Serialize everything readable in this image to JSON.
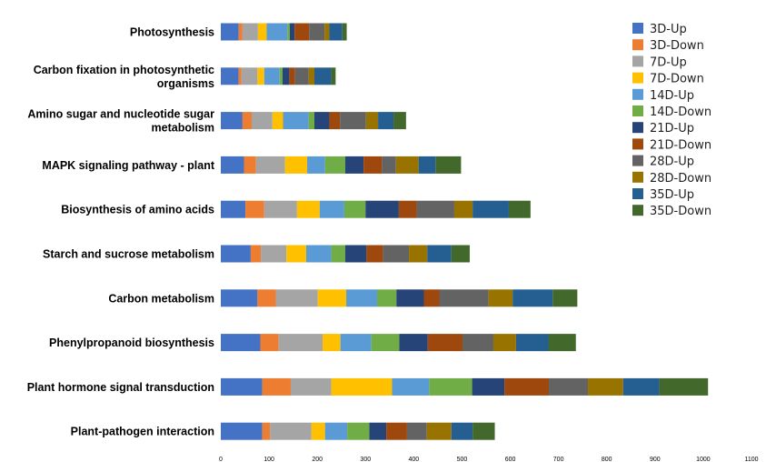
{
  "chart_data": {
    "type": "bar",
    "orientation": "horizontal",
    "stacked": true,
    "title": "",
    "xlabel": "",
    "ylabel": "",
    "xlim": [
      0,
      1100
    ],
    "xticks": [
      "0",
      "100",
      "200",
      "300",
      "400",
      "500",
      "600",
      "700",
      "800",
      "900",
      "1000",
      "1100"
    ],
    "grid": false,
    "legend_position": "top-right",
    "categories": [
      {
        "lines": [
          "Photosynthesis"
        ]
      },
      {
        "lines": [
          "Carbon fixation in photosynthetic",
          "organisms"
        ]
      },
      {
        "lines": [
          "Amino sugar and nucleotide sugar",
          "metabolism"
        ]
      },
      {
        "lines": [
          "MAPK signaling pathway - plant"
        ]
      },
      {
        "lines": [
          "Biosynthesis of amino acids"
        ]
      },
      {
        "lines": [
          "Starch and sucrose metabolism"
        ]
      },
      {
        "lines": [
          "Carbon metabolism"
        ]
      },
      {
        "lines": [
          "Phenylpropanoid biosynthesis"
        ]
      },
      {
        "lines": [
          "Plant hormone signal transduction"
        ]
      },
      {
        "lines": [
          "Plant-pathogen interaction"
        ]
      }
    ],
    "series": [
      {
        "name": "3D-Up",
        "color": "#4472C4",
        "values": [
          37,
          37,
          45,
          48,
          51,
          62,
          76,
          82,
          86,
          86
        ]
      },
      {
        "name": "3D-Down",
        "color": "#ED7D31",
        "values": [
          8,
          6,
          19,
          25,
          39,
          21,
          38,
          38,
          59,
          16
        ]
      },
      {
        "name": "7D-Up",
        "color": "#A5A5A5",
        "values": [
          32,
          33,
          43,
          60,
          68,
          53,
          87,
          91,
          84,
          86
        ]
      },
      {
        "name": "7D-Down",
        "color": "#FFC000",
        "values": [
          18,
          14,
          22,
          46,
          47,
          41,
          59,
          37,
          126,
          28
        ]
      },
      {
        "name": "14D-Up",
        "color": "#5B9BD5",
        "values": [
          43,
          32,
          53,
          37,
          51,
          52,
          64,
          64,
          77,
          46
        ]
      },
      {
        "name": "14D-Down",
        "color": "#70AD47",
        "values": [
          5,
          6,
          12,
          42,
          44,
          29,
          40,
          58,
          89,
          46
        ]
      },
      {
        "name": "21D-Up",
        "color": "#264478",
        "values": [
          10,
          14,
          31,
          38,
          69,
          44,
          57,
          59,
          67,
          35
        ]
      },
      {
        "name": "21D-Down",
        "color": "#9E480E",
        "values": [
          30,
          12,
          22,
          38,
          37,
          34,
          32,
          72,
          92,
          43
        ]
      },
      {
        "name": "28D-Up",
        "color": "#636363",
        "values": [
          32,
          28,
          54,
          29,
          78,
          54,
          102,
          64,
          81,
          41
        ]
      },
      {
        "name": "28D-Down",
        "color": "#997300",
        "values": [
          10,
          12,
          25,
          47,
          38,
          38,
          50,
          47,
          73,
          51
        ]
      },
      {
        "name": "35D-Up",
        "color": "#255E91",
        "values": [
          27,
          35,
          32,
          35,
          75,
          50,
          83,
          67,
          75,
          44
        ]
      },
      {
        "name": "35D-Down",
        "color": "#43682B",
        "values": [
          9,
          9,
          26,
          53,
          45,
          38,
          51,
          57,
          101,
          46
        ]
      }
    ]
  }
}
